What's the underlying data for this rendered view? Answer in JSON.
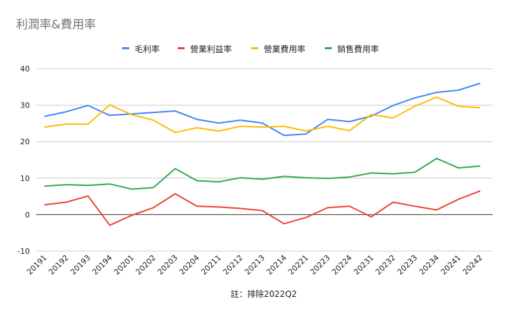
{
  "chart_data": {
    "type": "line",
    "title": "利潤率&費用率",
    "footnote": "註：排除2022Q2",
    "legend_position": "top",
    "grid": true,
    "ylim": [
      -10,
      40
    ],
    "yticks": [
      -10,
      0,
      10,
      20,
      30,
      40
    ],
    "categories": [
      "20191",
      "20192",
      "20193",
      "20194",
      "20201",
      "20202",
      "20203",
      "20204",
      "20211",
      "20212",
      "20213",
      "20214",
      "20221",
      "20223",
      "20224",
      "20231",
      "20232",
      "20233",
      "20234",
      "20241",
      "20242"
    ],
    "series": [
      {
        "name": "毛利率",
        "color": "#4285f4",
        "values": [
          26.9,
          28.2,
          29.9,
          27.2,
          27.6,
          28.0,
          28.4,
          26.1,
          25.1,
          25.9,
          25.1,
          21.7,
          22.1,
          26.1,
          25.5,
          27.0,
          29.9,
          32.0,
          33.5,
          34.1,
          36.0
        ]
      },
      {
        "name": "營業利益率",
        "color": "#ea4335",
        "values": [
          2.7,
          3.4,
          5.1,
          -2.9,
          -0.2,
          1.9,
          5.7,
          2.3,
          2.1,
          1.7,
          1.1,
          -2.5,
          -0.8,
          1.9,
          2.3,
          -0.6,
          3.4,
          2.3,
          1.3,
          4.2,
          6.5
        ]
      },
      {
        "name": "營業費用率",
        "color": "#fbbc04",
        "values": [
          24.0,
          24.8,
          24.8,
          30.1,
          27.4,
          25.9,
          22.5,
          23.8,
          22.9,
          24.2,
          24.0,
          24.2,
          22.9,
          24.2,
          23.0,
          27.4,
          26.5,
          29.7,
          32.2,
          29.7,
          29.3
        ]
      },
      {
        "name": "銷售費用率",
        "color": "#34a853",
        "values": [
          7.8,
          8.2,
          8.0,
          8.4,
          7.0,
          7.4,
          12.6,
          9.3,
          9.0,
          10.1,
          9.7,
          10.5,
          10.1,
          9.9,
          10.3,
          11.4,
          11.2,
          11.6,
          15.4,
          12.8,
          13.3
        ]
      }
    ]
  }
}
